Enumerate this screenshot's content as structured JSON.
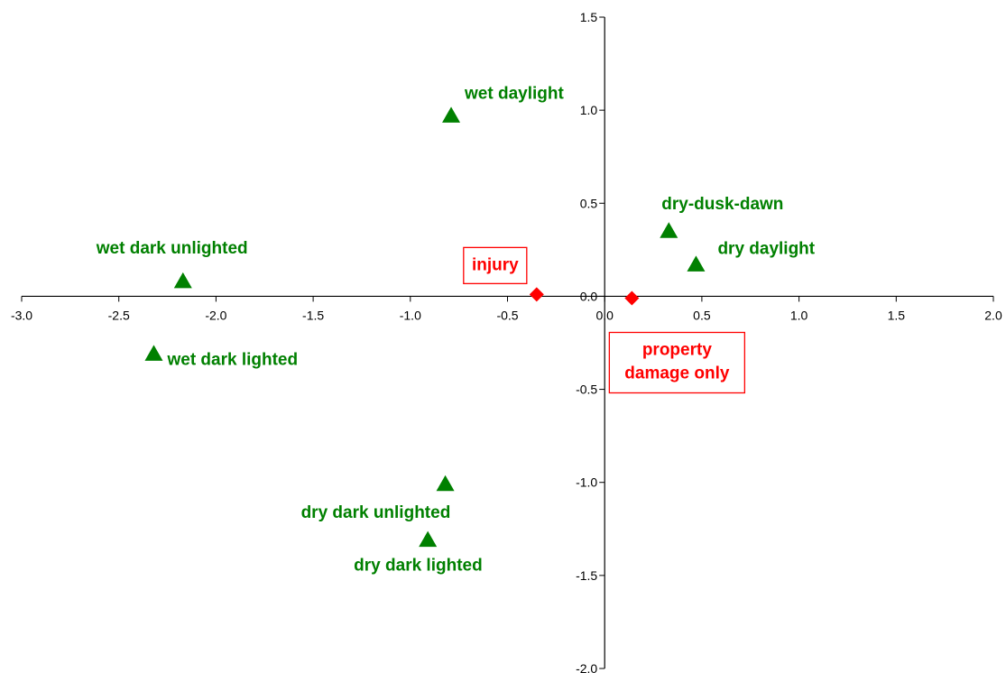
{
  "chart_data": {
    "type": "scatter",
    "title": "",
    "xlabel": "",
    "ylabel": "",
    "xlim": [
      -3.0,
      2.0
    ],
    "ylim": [
      -2.0,
      1.5
    ],
    "grid": false,
    "axes_cross_at_origin": true,
    "x_ticks": [
      "-3.0",
      "-2.5",
      "-2.0",
      "-1.5",
      "-1.0",
      "-0.5",
      "0.0",
      "0.5",
      "1.0",
      "1.5",
      "2.0"
    ],
    "y_ticks": [
      "1.5",
      "1.0",
      "0.5",
      "0.0",
      "-0.5",
      "-1.0",
      "-1.5",
      "-2.0"
    ],
    "series": [
      {
        "marker": "triangle",
        "color": "#008000",
        "points": [
          {
            "label": "wet daylight",
            "x": -0.79,
            "y": 0.97
          },
          {
            "label": "dry-dusk-dawn",
            "x": 0.33,
            "y": 0.35
          },
          {
            "label": "dry daylight",
            "x": 0.47,
            "y": 0.17
          },
          {
            "label": "wet dark unlighted",
            "x": -2.17,
            "y": 0.08
          },
          {
            "label": "wet dark lighted",
            "x": -2.32,
            "y": -0.31
          },
          {
            "label": "dry dark unlighted",
            "x": -0.82,
            "y": -1.01
          },
          {
            "label": "dry dark lighted",
            "x": -0.91,
            "y": -1.31
          }
        ]
      },
      {
        "marker": "diamond",
        "color": "#ff0000",
        "boxed_labels": true,
        "points": [
          {
            "label": "injury",
            "x": -0.35,
            "y": 0.01
          },
          {
            "label": "property damage only",
            "x": 0.14,
            "y": -0.01
          }
        ]
      }
    ]
  }
}
